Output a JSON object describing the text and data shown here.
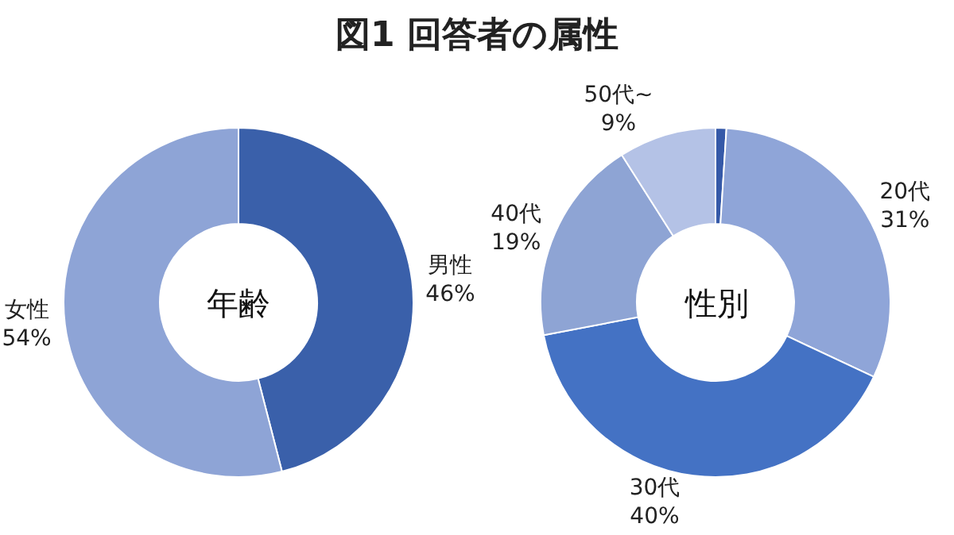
{
  "chart_data": [
    {
      "type": "donut",
      "title": "図1 回答者の属性",
      "annotations": [
        "年齢"
      ],
      "categories": [
        "男性",
        "女性"
      ],
      "values": [
        46,
        54
      ],
      "value_labels": [
        "46%",
        "54%"
      ],
      "colors": [
        "#3a60aa",
        "#8ea4d6"
      ]
    },
    {
      "type": "donut",
      "annotations": [
        "性別"
      ],
      "categories": [
        null,
        "20代",
        "30代",
        "40代",
        "50代~"
      ],
      "values": [
        1,
        31,
        40,
        19,
        9
      ],
      "value_labels": [
        null,
        "31%",
        "40%",
        "19%",
        "9%"
      ],
      "colors": [
        "#3559a8",
        "#8fa5d8",
        "#4472c4",
        "#8ea4d4",
        "#b4c2e6"
      ]
    }
  ]
}
